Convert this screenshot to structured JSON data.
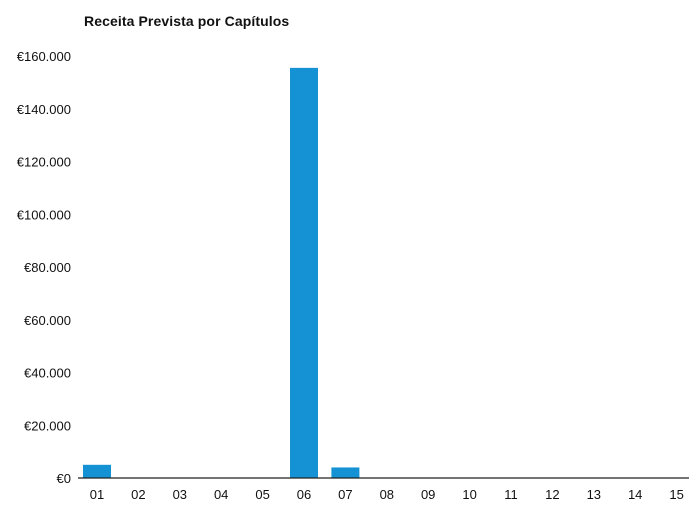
{
  "chart_data": {
    "type": "bar",
    "title": "Receita Prevista por Capítulos",
    "xlabel": "",
    "ylabel": "",
    "categories": [
      "01",
      "02",
      "03",
      "04",
      "05",
      "06",
      "07",
      "08",
      "09",
      "10",
      "11",
      "12",
      "13",
      "14",
      "15"
    ],
    "values": [
      5000,
      0,
      0,
      0,
      0,
      155500,
      4000,
      0,
      0,
      0,
      0,
      0,
      0,
      0,
      0
    ],
    "ylim": [
      0,
      160000
    ],
    "yticks": [
      0,
      20000,
      40000,
      60000,
      80000,
      100000,
      120000,
      140000,
      160000
    ],
    "ytick_labels": [
      "€0",
      "€20.000",
      "€40.000",
      "€60.000",
      "€80.000",
      "€100.000",
      "€120.000",
      "€140.000",
      "€160.000"
    ],
    "grid": false,
    "legend": "none",
    "colors": {
      "bar": "#1592d4",
      "axis": "#222222",
      "text": "#111111"
    }
  }
}
